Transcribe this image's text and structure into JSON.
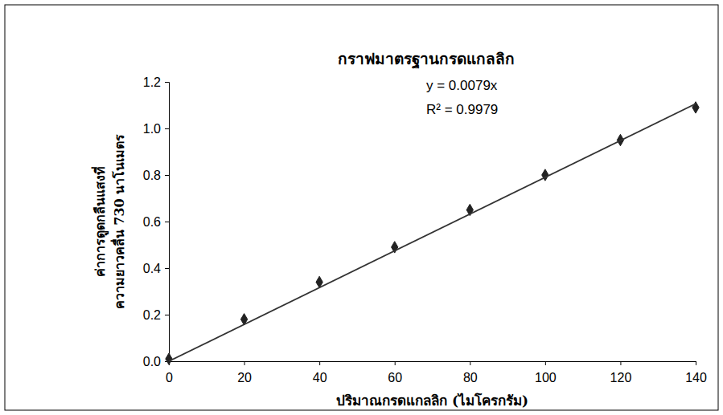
{
  "chart_data": {
    "type": "scatter",
    "title": "กราฟมาตรฐานกรดแกลลิก",
    "x_label": "ปริมาณกรดแกลลิก (ไมโครกรัม)",
    "y_label": [
      "ค่าการดูดกลืนแสงที่",
      "ความยาวคลื่น 730 นาโนเมตร"
    ],
    "annotations": [
      "y = 0.0079x",
      "R² = 0.9979"
    ],
    "xlim": [
      0,
      140
    ],
    "xticks": [
      0,
      20,
      40,
      60,
      80,
      100,
      120,
      140
    ],
    "ylim": [
      0,
      1.2
    ],
    "yticks": [
      {
        "value": 0,
        "label": "0.0"
      },
      0.2,
      0.4,
      0.6,
      0.8,
      {
        "value": 1,
        "label": "1.0"
      },
      1.2
    ],
    "grid": false,
    "series": [
      {
        "type": "scatter",
        "marker": "diamond",
        "color": "#222222",
        "x": [
          0,
          20,
          40,
          60,
          80,
          100,
          120,
          140
        ],
        "values": [
          0.01,
          0.18,
          0.34,
          0.49,
          0.65,
          0.8,
          0.95,
          1.09
        ]
      },
      {
        "type": "line",
        "line_style": "solid",
        "color": "#333333",
        "x": [
          0,
          140
        ],
        "values": [
          0,
          1.106
        ]
      }
    ]
  }
}
